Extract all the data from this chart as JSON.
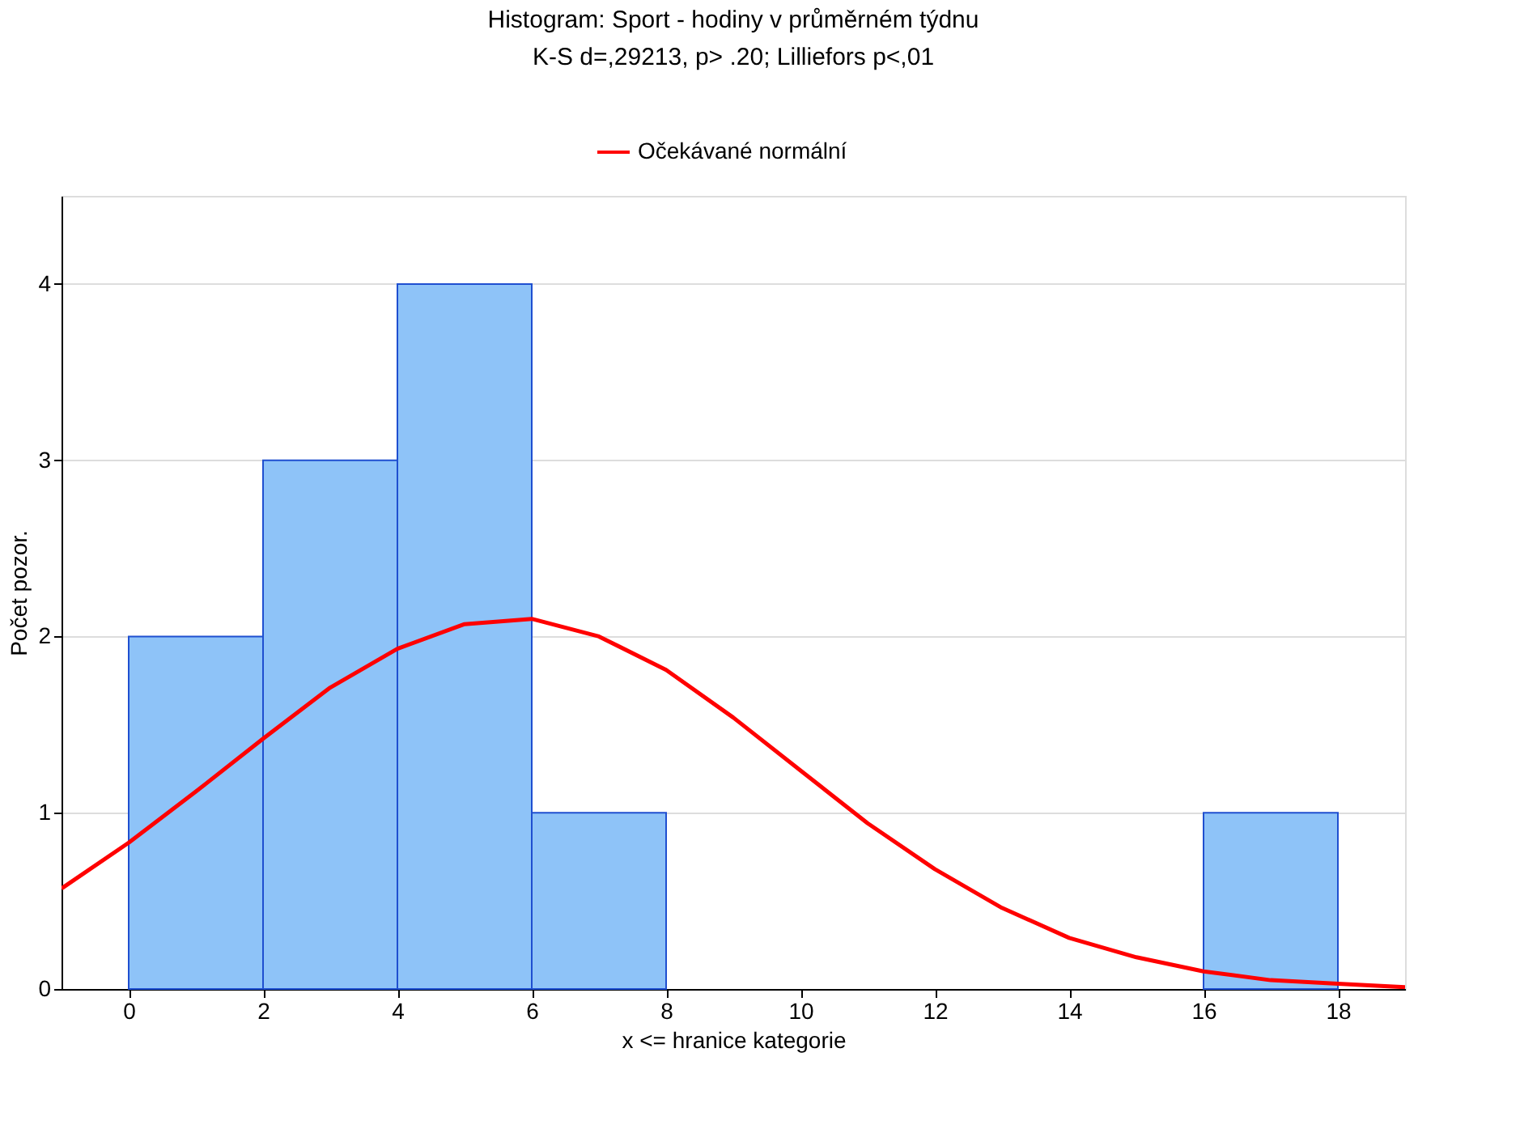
{
  "chart_data": {
    "type": "histogram",
    "title": "Histogram: Sport - hodiny v průměrném týdnu",
    "subtitle": "K-S d=,29213, p> .20; Lilliefors p<,01",
    "xlabel": "x <= hranice kategorie",
    "ylabel": "Počet pozor.",
    "bins": [
      0,
      2,
      4,
      6,
      8,
      10,
      12,
      14,
      16,
      18
    ],
    "values": [
      2,
      3,
      4,
      1,
      0,
      0,
      0,
      0,
      1
    ],
    "color": "#8ec3f8",
    "series": [
      {
        "type": "line",
        "name": "Očekávané normální",
        "color": "#ff0000",
        "x": [
          -1,
          0,
          1,
          2,
          3,
          4,
          5,
          6,
          7,
          8,
          9,
          10,
          11,
          12,
          13,
          14,
          15,
          16,
          17,
          18,
          19
        ],
        "values": [
          0.57,
          0.83,
          1.12,
          1.42,
          1.71,
          1.93,
          2.07,
          2.1,
          2.0,
          1.81,
          1.54,
          1.24,
          0.94,
          0.68,
          0.46,
          0.29,
          0.18,
          0.1,
          0.05,
          0.03,
          0.01
        ]
      }
    ],
    "xlim": [
      -1,
      19
    ],
    "xticks": [
      0,
      2,
      4,
      6,
      8,
      10,
      12,
      14,
      16,
      18
    ],
    "ylim": [
      0,
      4.5
    ],
    "yticks": [
      0,
      1,
      2,
      3,
      4
    ],
    "grid": "y",
    "legend": "top"
  }
}
